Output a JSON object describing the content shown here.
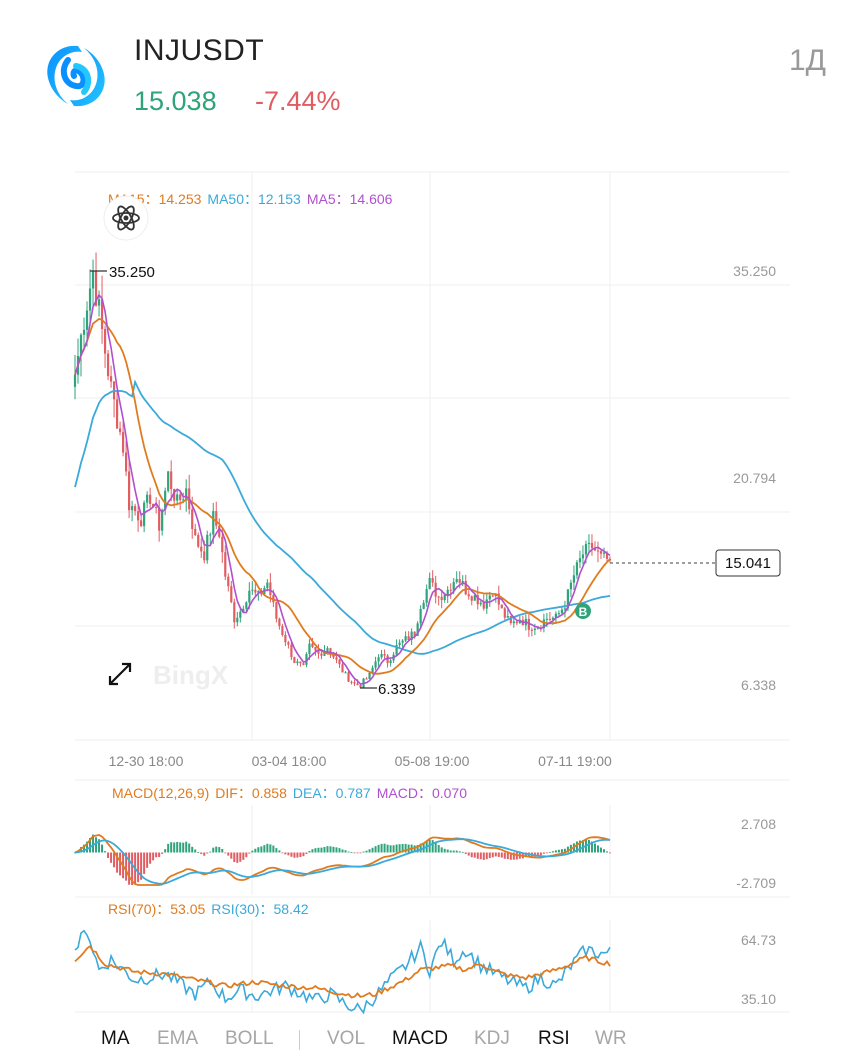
{
  "header": {
    "symbol": "INJUSDT",
    "price": "15.038",
    "change": "-7.44%",
    "period": "1Д",
    "logo_icon": "injective-logo-icon"
  },
  "colors": {
    "up": "#2fa37a",
    "down": "#e05d62",
    "ma15": "#e07b1f",
    "ma50": "#3ba9da",
    "ma5": "#b050d0",
    "rsi70": "#e07b1f",
    "rsi30": "#3ba9da"
  },
  "main_legend": {
    "ma15_label": "MA15：",
    "ma15_value": "14.253",
    "ma50_label": "MA50：",
    "ma50_value": "12.153",
    "ma5_label": "MA5：",
    "ma5_value": "14.606"
  },
  "main_axis": {
    "y_labels": [
      "35.250",
      "20.794",
      "6.338"
    ],
    "high_label": "35.250",
    "low_label": "6.339",
    "current_label": "15.041",
    "x_labels": [
      "12-30 18:00",
      "03-04 18:00",
      "05-08 19:00",
      "07-11 19:00"
    ],
    "watermark": "BingX",
    "expand_icon": "expand-arrows-icon",
    "indicator_icon": "atom-icon",
    "badge_letter": "B"
  },
  "macd_legend": {
    "title": "MACD(12,26,9)",
    "dif_label": "DIF：",
    "dif_value": "0.858",
    "dea_label": "DEA：",
    "dea_value": "0.787",
    "macd_label": "MACD：",
    "macd_value": "0.070",
    "y_labels": [
      "2.708",
      "-2.709"
    ]
  },
  "rsi_legend": {
    "rsi70_label": "RSI(70)：",
    "rsi70_value": "53.05",
    "rsi30_label": "RSI(30)：",
    "rsi30_value": "58.42",
    "y_labels": [
      "64.73",
      "35.10"
    ]
  },
  "tabs": [
    {
      "label": "MA",
      "active": true
    },
    {
      "label": "EMA",
      "active": false
    },
    {
      "label": "BOLL",
      "active": false
    },
    {
      "label": "VOL",
      "active": false
    },
    {
      "label": "MACD",
      "active": true
    },
    {
      "label": "KDJ",
      "active": false
    },
    {
      "label": "RSI",
      "active": true
    },
    {
      "label": "WR",
      "active": false
    }
  ],
  "chart_data": {
    "type": "candlestick",
    "anchors": {
      "price": [
        [
          0,
          28
        ],
        [
          3,
          32
        ],
        [
          6,
          35.25
        ],
        [
          9,
          31
        ],
        [
          12,
          27
        ],
        [
          16,
          23
        ],
        [
          18,
          19
        ],
        [
          22,
          18
        ],
        [
          25,
          19.5
        ],
        [
          28,
          17.5
        ],
        [
          31,
          21
        ],
        [
          34,
          19
        ],
        [
          37,
          20
        ],
        [
          40,
          16.5
        ],
        [
          43,
          15.5
        ],
        [
          46,
          18
        ],
        [
          48,
          17
        ],
        [
          50,
          14
        ],
        [
          53,
          11
        ],
        [
          55,
          11.5
        ],
        [
          58,
          13
        ],
        [
          61,
          12.5
        ],
        [
          64,
          13.5
        ],
        [
          67,
          11
        ],
        [
          70,
          9.5
        ],
        [
          73,
          8
        ],
        [
          76,
          7.5
        ],
        [
          78,
          9
        ],
        [
          81,
          8.5
        ],
        [
          84,
          9
        ],
        [
          87,
          8
        ],
        [
          90,
          7
        ],
        [
          93,
          6.4
        ],
        [
          95,
          6.339
        ],
        [
          98,
          7
        ],
        [
          101,
          8.5
        ],
        [
          104,
          8
        ],
        [
          107,
          9
        ],
        [
          110,
          9.5
        ],
        [
          113,
          10
        ],
        [
          115,
          12
        ],
        [
          118,
          13.5
        ],
        [
          121,
          12.5
        ],
        [
          124,
          13
        ],
        [
          127,
          14
        ],
        [
          130,
          13
        ],
        [
          133,
          12.5
        ],
        [
          136,
          12
        ],
        [
          139,
          13
        ],
        [
          142,
          11.5
        ],
        [
          145,
          10.5
        ],
        [
          148,
          11
        ],
        [
          151,
          10.5
        ],
        [
          154,
          10.5
        ],
        [
          157,
          11
        ],
        [
          160,
          11
        ],
        [
          163,
          12
        ],
        [
          166,
          14
        ],
        [
          169,
          15.5
        ],
        [
          172,
          16
        ],
        [
          175,
          15.2
        ],
        [
          178,
          15.041
        ]
      ],
      "rsi70": [
        [
          0,
          55
        ],
        [
          5,
          62
        ],
        [
          10,
          53
        ],
        [
          20,
          49
        ],
        [
          30,
          48
        ],
        [
          40,
          45
        ],
        [
          50,
          42
        ],
        [
          60,
          44
        ],
        [
          70,
          42
        ],
        [
          80,
          41
        ],
        [
          90,
          38
        ],
        [
          95,
          37
        ],
        [
          100,
          38
        ],
        [
          110,
          45
        ],
        [
          115,
          50
        ],
        [
          125,
          52
        ],
        [
          130,
          50
        ],
        [
          135,
          53
        ],
        [
          140,
          49
        ],
        [
          145,
          47
        ],
        [
          150,
          46
        ],
        [
          155,
          48
        ],
        [
          160,
          50
        ],
        [
          165,
          53
        ],
        [
          170,
          56
        ],
        [
          175,
          54
        ],
        [
          178,
          53.05
        ]
      ],
      "rsi30": [
        [
          0,
          60
        ],
        [
          4,
          70
        ],
        [
          8,
          50
        ],
        [
          12,
          55
        ],
        [
          20,
          45
        ],
        [
          30,
          48
        ],
        [
          40,
          38
        ],
        [
          45,
          44
        ],
        [
          50,
          36
        ],
        [
          55,
          40
        ],
        [
          60,
          37
        ],
        [
          70,
          42
        ],
        [
          80,
          35
        ],
        [
          85,
          38
        ],
        [
          90,
          33
        ],
        [
          95,
          30
        ],
        [
          100,
          37
        ],
        [
          105,
          45
        ],
        [
          110,
          52
        ],
        [
          115,
          61
        ],
        [
          118,
          50
        ],
        [
          122,
          64
        ],
        [
          126,
          55
        ],
        [
          130,
          60
        ],
        [
          135,
          52
        ],
        [
          140,
          48
        ],
        [
          145,
          44
        ],
        [
          150,
          41
        ],
        [
          155,
          46
        ],
        [
          160,
          42
        ],
        [
          165,
          52
        ],
        [
          170,
          60
        ],
        [
          175,
          58
        ],
        [
          178,
          58.42
        ]
      ]
    },
    "series_count": 179,
    "y_range": [
      6.338,
      35.25
    ],
    "macd_range": [
      -2.709,
      2.708
    ],
    "rsi_range": [
      35.1,
      64.73
    ]
  }
}
